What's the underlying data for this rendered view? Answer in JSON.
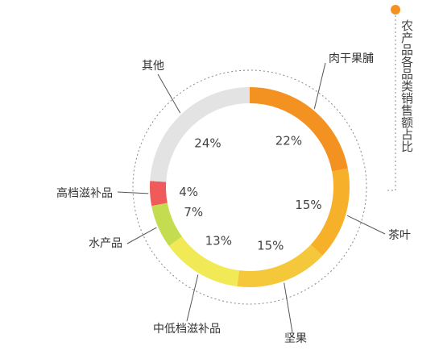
{
  "chart_data": {
    "type": "pie",
    "title": "农产品各品类销售额占比",
    "categories": [
      "肉干果脯",
      "茶叶",
      "坚果",
      "中低档滋补品",
      "水产品",
      "高档滋补品",
      "其他"
    ],
    "values": [
      22,
      15,
      15,
      13,
      7,
      4,
      24
    ],
    "value_labels": [
      "22%",
      "15%",
      "15%",
      "13%",
      "7%",
      "4%",
      "24%"
    ],
    "colors": [
      "#f39220",
      "#f7b02a",
      "#f5c83c",
      "#f1ea56",
      "#c4dc4f",
      "#f05a5b",
      "#e3e3e3"
    ],
    "accent_color": "#f39220",
    "donut": true,
    "legend": "none"
  }
}
